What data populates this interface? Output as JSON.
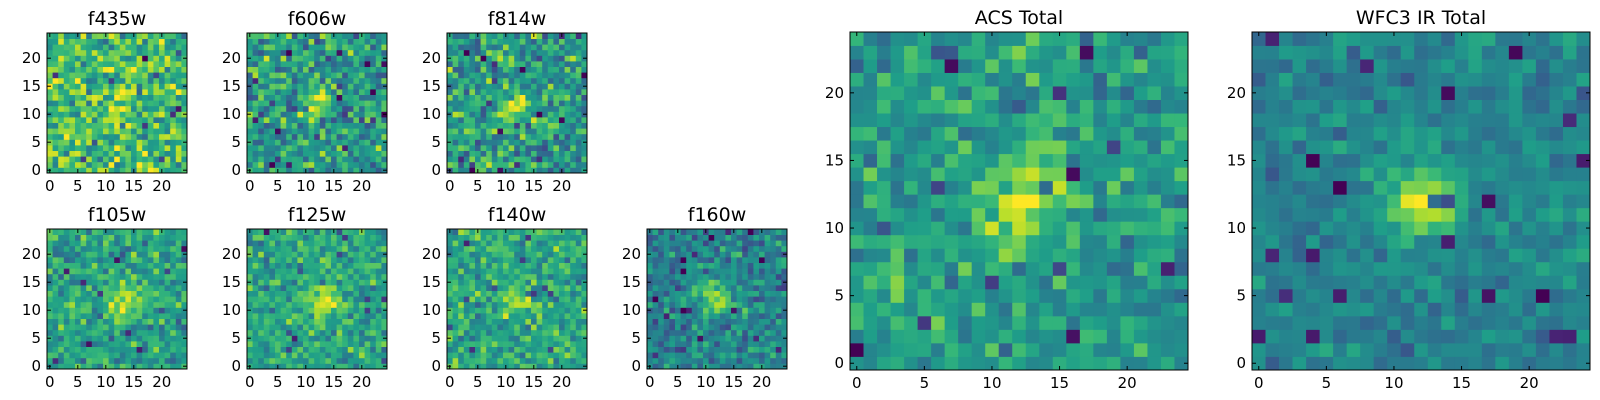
{
  "chart_data": [
    {
      "type": "heatmap",
      "title": "f435w",
      "x_ticks": [
        0,
        5,
        10,
        15,
        20
      ],
      "y_ticks": [
        0,
        5,
        10,
        15,
        20
      ],
      "xlim": [
        -0.5,
        24.5
      ],
      "ylim": [
        -0.5,
        24.5
      ],
      "grid": false,
      "colormap": "viridis",
      "source_feature": "noisy field, faint diffuse emission",
      "source_center": [
        12,
        12
      ],
      "source_strength": 0.15,
      "noise": 0.3,
      "background": 0.68
    },
    {
      "type": "heatmap",
      "title": "f606w",
      "x_ticks": [
        0,
        5,
        10,
        15,
        20
      ],
      "y_ticks": [
        0,
        5,
        10,
        15,
        20
      ],
      "xlim": [
        -0.5,
        24.5
      ],
      "ylim": [
        -0.5,
        24.5
      ],
      "grid": false,
      "colormap": "viridis",
      "source_feature": "small bright source",
      "source_center": [
        12,
        12
      ],
      "source_strength": 0.3,
      "noise": 0.3,
      "background": 0.55
    },
    {
      "type": "heatmap",
      "title": "f814w",
      "x_ticks": [
        0,
        5,
        10,
        15,
        20
      ],
      "y_ticks": [
        0,
        5,
        10,
        15,
        20
      ],
      "xlim": [
        -0.5,
        24.5
      ],
      "ylim": [
        -0.5,
        24.5
      ],
      "grid": false,
      "colormap": "viridis",
      "source_feature": "small bright source",
      "source_center": [
        12,
        11
      ],
      "source_strength": 0.35,
      "noise": 0.3,
      "background": 0.55
    },
    {
      "type": "heatmap",
      "title": "f105w",
      "x_ticks": [
        0,
        5,
        10,
        15,
        20
      ],
      "y_ticks": [
        0,
        5,
        10,
        15,
        20
      ],
      "xlim": [
        -0.5,
        24.5
      ],
      "ylim": [
        -0.5,
        24.5
      ],
      "grid": false,
      "colormap": "viridis",
      "source_feature": "compact bright source",
      "source_center": [
        13,
        11
      ],
      "source_strength": 0.35,
      "noise": 0.22,
      "background": 0.58
    },
    {
      "type": "heatmap",
      "title": "f125w",
      "x_ticks": [
        0,
        5,
        10,
        15,
        20
      ],
      "y_ticks": [
        0,
        5,
        10,
        15,
        20
      ],
      "xlim": [
        -0.5,
        24.5
      ],
      "ylim": [
        -0.5,
        24.5
      ],
      "grid": false,
      "colormap": "viridis",
      "source_feature": "compact bright source",
      "source_center": [
        13,
        12
      ],
      "source_strength": 0.35,
      "noise": 0.22,
      "background": 0.6
    },
    {
      "type": "heatmap",
      "title": "f140w",
      "x_ticks": [
        0,
        5,
        10,
        15,
        20
      ],
      "y_ticks": [
        0,
        5,
        10,
        15,
        20
      ],
      "xlim": [
        -0.5,
        24.5
      ],
      "ylim": [
        -0.5,
        24.5
      ],
      "grid": false,
      "colormap": "viridis",
      "source_feature": "compact bright source",
      "source_center": [
        12,
        12
      ],
      "source_strength": 0.3,
      "noise": 0.22,
      "background": 0.6
    },
    {
      "type": "heatmap",
      "title": "f160w",
      "x_ticks": [
        0,
        5,
        10,
        15,
        20
      ],
      "y_ticks": [
        0,
        5,
        10,
        15,
        20
      ],
      "xlim": [
        -0.5,
        24.5
      ],
      "ylim": [
        -0.5,
        24.5
      ],
      "grid": false,
      "colormap": "viridis",
      "source_feature": "compact bright source",
      "source_center": [
        12,
        12
      ],
      "source_strength": 0.45,
      "noise": 0.22,
      "background": 0.45
    },
    {
      "type": "heatmap",
      "title": "ACS Total",
      "x_ticks": [
        0,
        5,
        10,
        15,
        20
      ],
      "y_ticks": [
        0,
        5,
        10,
        15,
        20
      ],
      "xlim": [
        -0.5,
        24.5
      ],
      "ylim": [
        -0.5,
        24.5
      ],
      "grid": false,
      "colormap": "viridis",
      "source_feature": "bright elongated source",
      "source_center": [
        12,
        11.5
      ],
      "source_strength": 0.35,
      "noise": 0.22,
      "background": 0.55
    },
    {
      "type": "heatmap",
      "title": "WFC3 IR Total",
      "x_ticks": [
        0,
        5,
        10,
        15,
        20
      ],
      "y_ticks": [
        0,
        5,
        10,
        15,
        20
      ],
      "xlim": [
        -0.5,
        24.5
      ],
      "ylim": [
        -0.5,
        24.5
      ],
      "grid": false,
      "colormap": "viridis",
      "source_feature": "bright compact source",
      "source_center": [
        12,
        12
      ],
      "source_strength": 0.45,
      "noise": 0.14,
      "background": 0.45
    }
  ]
}
